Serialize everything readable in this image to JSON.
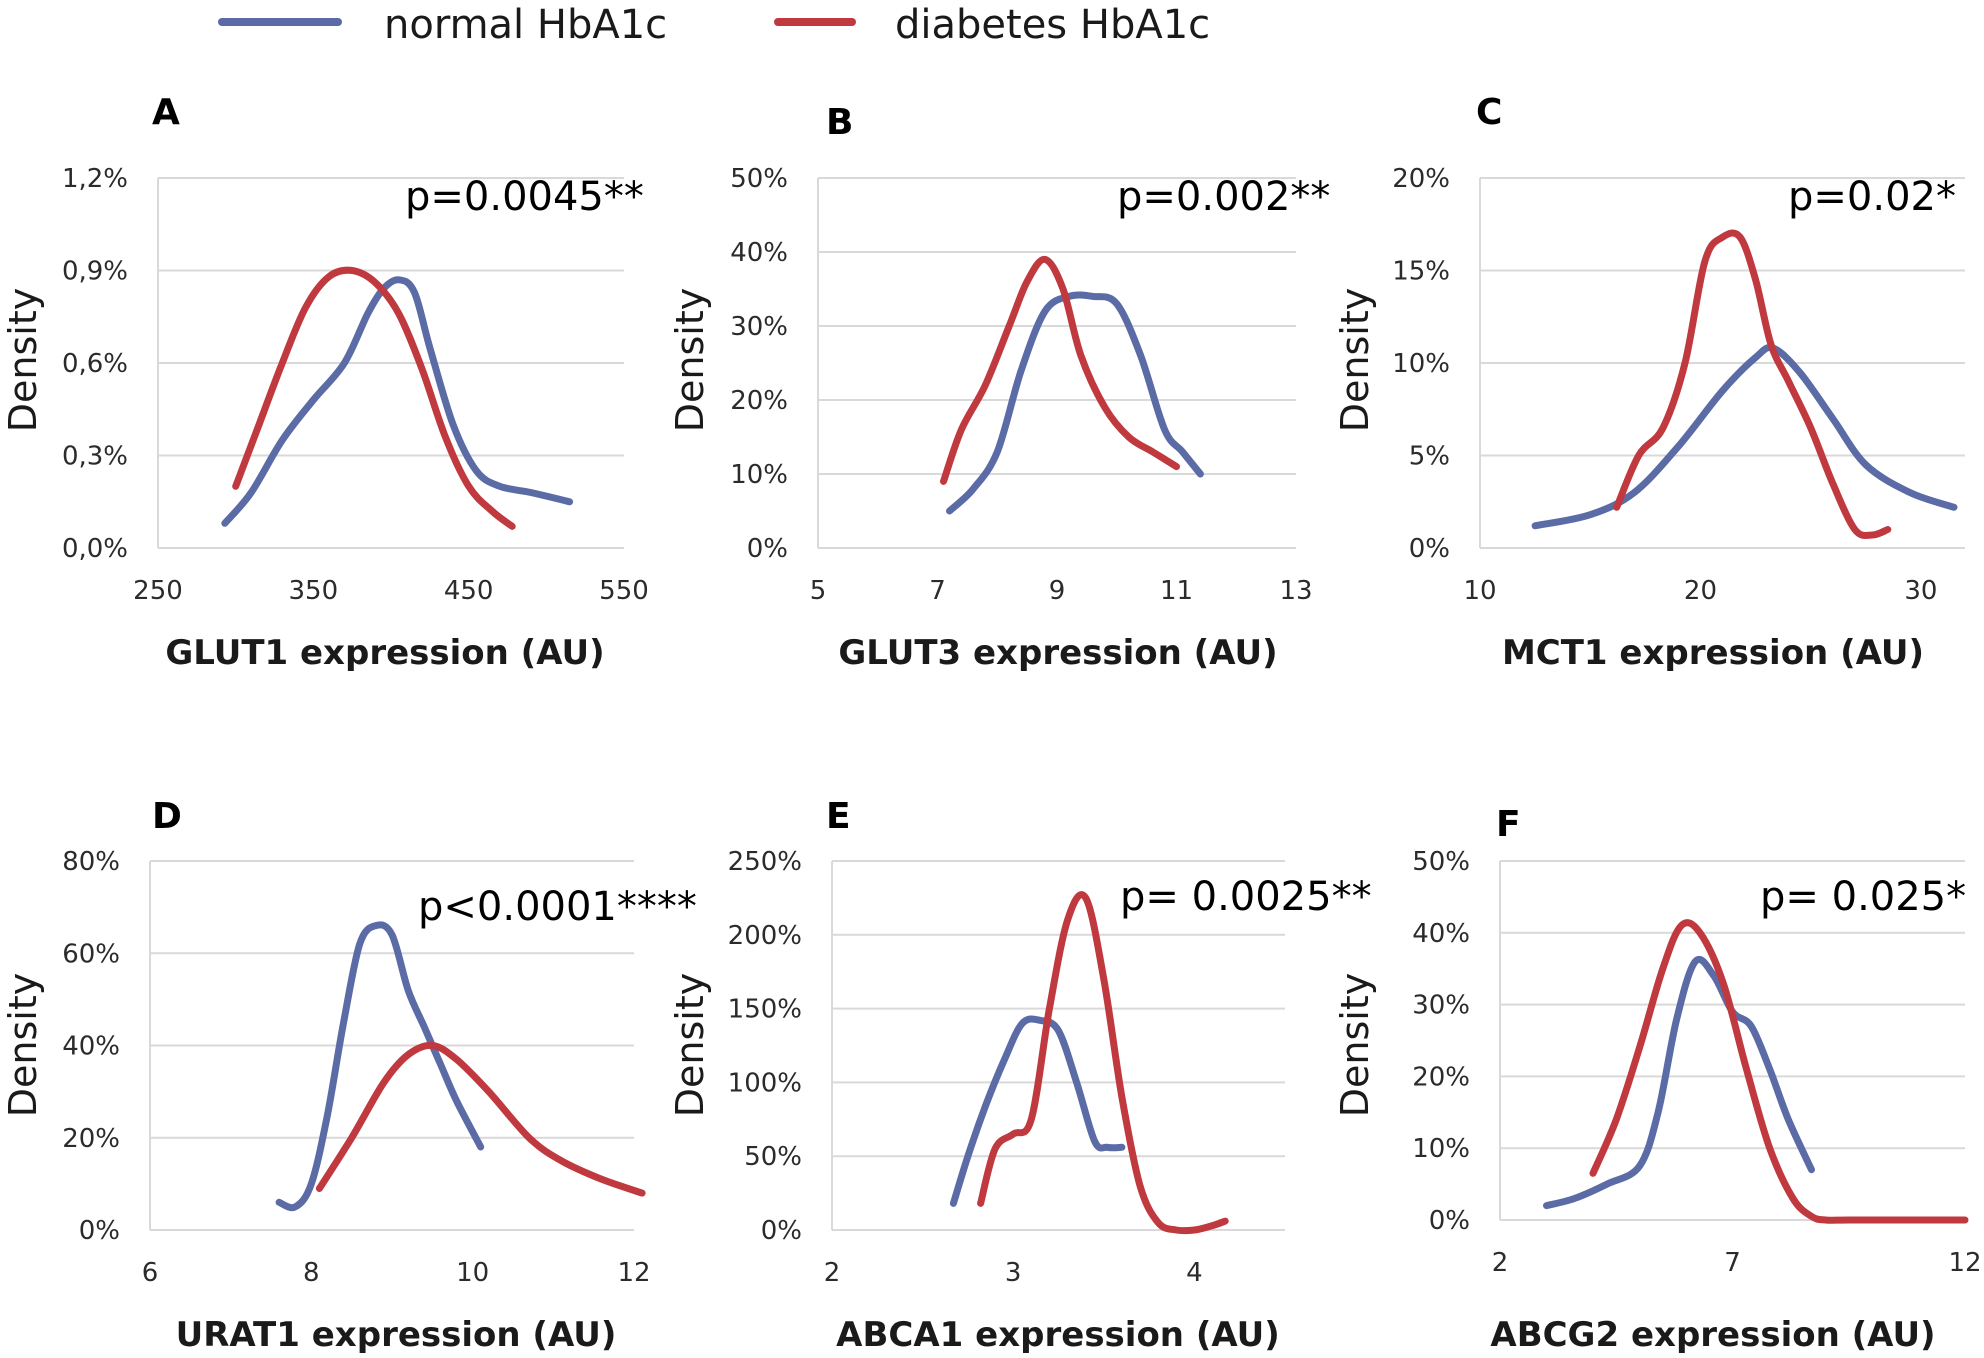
{
  "legend": [
    {
      "name": "normal HbA1c",
      "color": "#5b6ba5"
    },
    {
      "name": "diabetes HbA1c",
      "color": "#c0393f"
    }
  ],
  "chart_data": [
    {
      "panel": "A",
      "type": "line",
      "p_value": "p=0.0045**",
      "xlabel": "GLUT1 expression (AU)",
      "ylabel": "Density",
      "xlim": [
        250,
        550
      ],
      "xticks": [
        250,
        350,
        450,
        550
      ],
      "ylim": [
        0,
        1.2
      ],
      "yticks": [
        0,
        0.3,
        0.6,
        0.9,
        1.2
      ],
      "ytick_labels": [
        "0,0%",
        "0,3%",
        "0,6%",
        "0,9%",
        "1,2%"
      ],
      "series": [
        {
          "name": "normal HbA1c",
          "x": [
            293,
            310,
            330,
            350,
            370,
            385,
            395,
            405,
            415,
            425,
            440,
            455,
            470,
            490,
            515
          ],
          "y": [
            0.08,
            0.18,
            0.35,
            0.48,
            0.6,
            0.76,
            0.84,
            0.87,
            0.83,
            0.65,
            0.4,
            0.25,
            0.2,
            0.18,
            0.15
          ]
        },
        {
          "name": "diabetes HbA1c",
          "x": [
            300,
            315,
            330,
            345,
            360,
            375,
            390,
            405,
            420,
            435,
            450,
            465,
            478
          ],
          "y": [
            0.2,
            0.4,
            0.6,
            0.78,
            0.88,
            0.9,
            0.86,
            0.76,
            0.58,
            0.36,
            0.2,
            0.12,
            0.07
          ]
        }
      ]
    },
    {
      "panel": "B",
      "type": "line",
      "p_value": "p=0.002**",
      "xlabel": "GLUT3 expression (AU)",
      "ylabel": "Density",
      "xlim": [
        5,
        13
      ],
      "xticks": [
        5,
        7,
        9,
        11,
        13
      ],
      "ylim": [
        0,
        50
      ],
      "yticks": [
        0,
        10,
        20,
        30,
        40,
        50
      ],
      "ytick_labels": [
        "0%",
        "10%",
        "20%",
        "30%",
        "40%",
        "50%"
      ],
      "series": [
        {
          "name": "normal HbA1c",
          "x": [
            7.2,
            7.6,
            8.0,
            8.4,
            8.8,
            9.2,
            9.6,
            10.0,
            10.4,
            10.8,
            11.1,
            11.4
          ],
          "y": [
            5,
            8,
            13,
            24,
            32,
            34,
            34,
            33,
            26,
            16,
            13,
            10
          ]
        },
        {
          "name": "diabetes HbA1c",
          "x": [
            7.1,
            7.4,
            7.8,
            8.2,
            8.5,
            8.8,
            9.1,
            9.4,
            9.8,
            10.2,
            10.6,
            11.0
          ],
          "y": [
            9,
            16,
            22,
            30,
            36,
            39,
            35,
            26,
            19,
            15,
            13,
            11
          ]
        }
      ]
    },
    {
      "panel": "C",
      "type": "line",
      "p_value": "p=0.02*",
      "xlabel": "MCT1 expression (AU)",
      "ylabel": "Density",
      "xlim": [
        10,
        32
      ],
      "xticks": [
        10,
        20,
        30
      ],
      "ylim": [
        0,
        20
      ],
      "yticks": [
        0,
        5,
        10,
        15,
        20
      ],
      "ytick_labels": [
        "0%",
        "5%",
        "10%",
        "15%",
        "20%"
      ],
      "series": [
        {
          "name": "normal HbA1c",
          "x": [
            12.5,
            15,
            17,
            19,
            21,
            22.5,
            23.3,
            24.5,
            26,
            27.5,
            29.5,
            31.5
          ],
          "y": [
            1.2,
            1.8,
            3,
            5.5,
            8.5,
            10.3,
            10.8,
            9.5,
            7,
            4.5,
            3,
            2.2
          ]
        },
        {
          "name": "diabetes HbA1c",
          "x": [
            16.2,
            17.2,
            18.3,
            19.3,
            20.2,
            21.0,
            21.8,
            22.5,
            23.2,
            24.0,
            25.0,
            26.0,
            27.0,
            27.8,
            28.5
          ],
          "y": [
            2.2,
            5,
            6.5,
            10,
            15.5,
            16.8,
            16.8,
            14.5,
            11,
            9,
            6.5,
            3.5,
            1,
            0.7,
            1
          ]
        }
      ]
    },
    {
      "panel": "D",
      "type": "line",
      "p_value": "p<0.0001****",
      "xlabel": "URAT1 expression (AU)",
      "ylabel": "Density",
      "xlim": [
        6,
        12
      ],
      "xticks": [
        6,
        8,
        10,
        12
      ],
      "ylim": [
        0,
        80
      ],
      "yticks": [
        0,
        20,
        40,
        60,
        80
      ],
      "ytick_labels": [
        "0%",
        "20%",
        "40%",
        "60%",
        "80%"
      ],
      "series": [
        {
          "name": "normal HbA1c",
          "x": [
            7.6,
            7.8,
            8.0,
            8.2,
            8.4,
            8.6,
            8.8,
            9.0,
            9.2,
            9.4,
            9.6,
            9.8,
            10.1
          ],
          "y": [
            6,
            5,
            10,
            25,
            45,
            62,
            66,
            64,
            52,
            44,
            36,
            28,
            18
          ]
        },
        {
          "name": "diabetes HbA1c",
          "x": [
            8.1,
            8.5,
            8.9,
            9.2,
            9.5,
            9.8,
            10.2,
            10.7,
            11.1,
            11.6,
            12.1
          ],
          "y": [
            9,
            20,
            32,
            38,
            40,
            37,
            30,
            20,
            15,
            11,
            8
          ]
        }
      ]
    },
    {
      "panel": "E",
      "type": "line",
      "p_value": "p= 0.0025**",
      "xlabel": "ABCA1 expression (AU)",
      "ylabel": "Density",
      "xlim": [
        2,
        4.5
      ],
      "xticks": [
        2,
        3,
        4
      ],
      "ylim": [
        0,
        250
      ],
      "yticks": [
        0,
        50,
        100,
        150,
        200,
        250
      ],
      "ytick_labels": [
        "0%",
        "50%",
        "100%",
        "150%",
        "200%",
        "250%"
      ],
      "series": [
        {
          "name": "normal HbA1c",
          "x": [
            2.67,
            2.75,
            2.85,
            2.95,
            3.05,
            3.15,
            3.25,
            3.35,
            3.45,
            3.52,
            3.6
          ],
          "y": [
            18,
            50,
            85,
            115,
            140,
            142,
            135,
            100,
            60,
            56,
            56
          ]
        },
        {
          "name": "diabetes HbA1c",
          "x": [
            2.82,
            2.9,
            3.0,
            3.1,
            3.2,
            3.3,
            3.4,
            3.5,
            3.6,
            3.7,
            3.8,
            3.9,
            4.0,
            4.1,
            4.17
          ],
          "y": [
            18,
            55,
            65,
            75,
            150,
            210,
            225,
            170,
            90,
            30,
            5,
            0,
            0,
            3,
            6
          ]
        }
      ]
    },
    {
      "panel": "F",
      "type": "line",
      "p_value": "p= 0.025*",
      "xlabel": "ABCG2 expression (AU)",
      "ylabel": "Density",
      "xlim": [
        2,
        12
      ],
      "xticks": [
        2,
        7,
        12
      ],
      "ylim": [
        0,
        50
      ],
      "yticks": [
        0,
        10,
        20,
        30,
        40,
        50
      ],
      "ytick_labels": [
        "0%",
        "10%",
        "20%",
        "30%",
        "40%",
        "50%"
      ],
      "series": [
        {
          "name": "normal HbA1c",
          "x": [
            3.0,
            3.6,
            4.3,
            5.0,
            5.4,
            5.8,
            6.2,
            6.6,
            7.0,
            7.4,
            7.8,
            8.2,
            8.7
          ],
          "y": [
            2,
            3,
            5,
            7.5,
            15,
            28,
            36,
            34,
            29,
            27,
            21,
            14,
            7
          ]
        },
        {
          "name": "diabetes HbA1c",
          "x": [
            4.0,
            4.5,
            5.0,
            5.5,
            5.9,
            6.3,
            6.8,
            7.3,
            7.8,
            8.3,
            8.7,
            9.0,
            9.5,
            10.5,
            11.5,
            12.0
          ],
          "y": [
            6.5,
            14,
            24,
            35,
            41,
            40,
            33,
            21,
            10,
            3,
            0.5,
            0,
            0,
            0,
            0,
            0
          ]
        }
      ]
    }
  ]
}
